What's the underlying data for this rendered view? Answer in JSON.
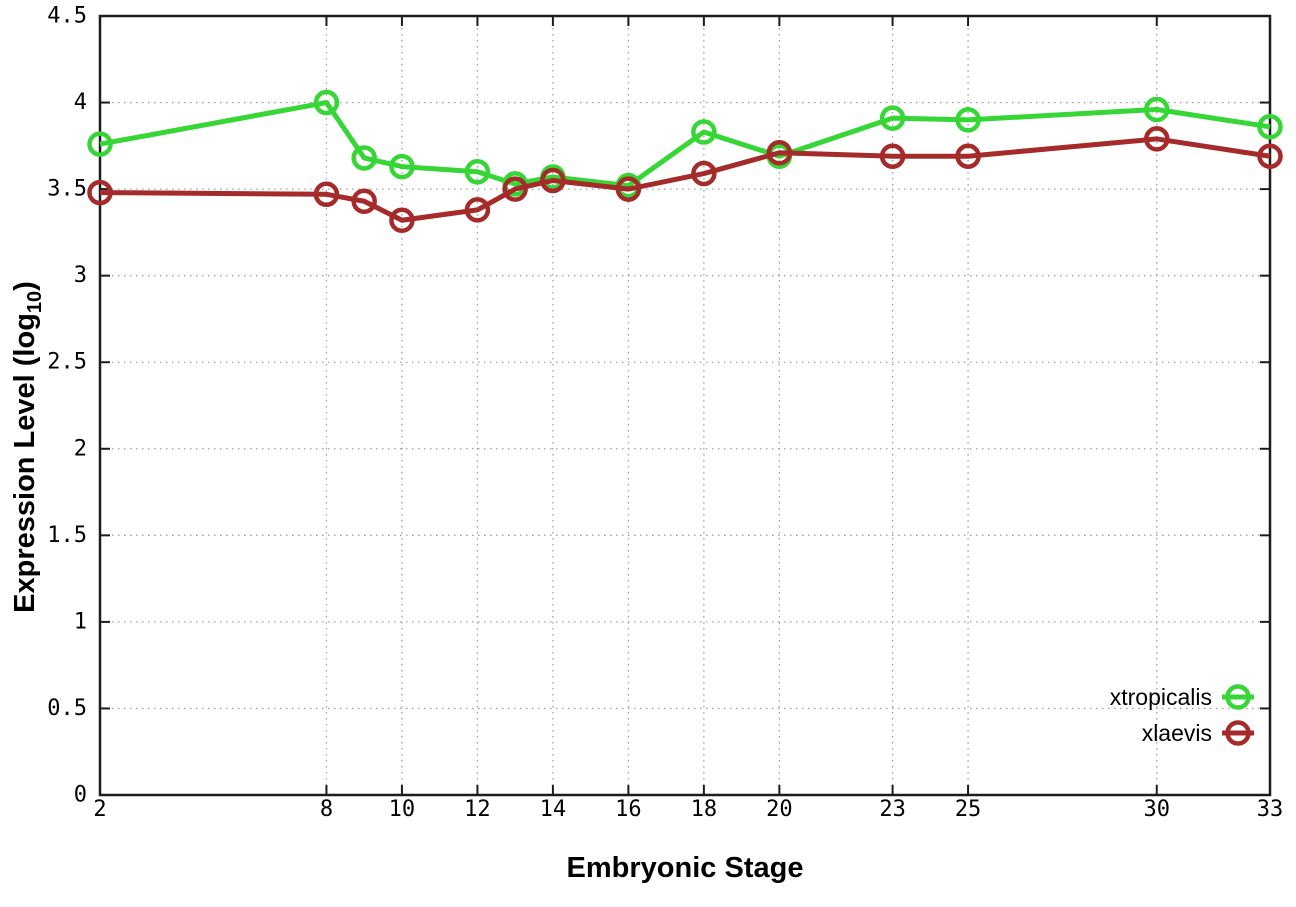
{
  "figure": {
    "background": "#ffffff",
    "border_color": "#1c1c1c",
    "grid_color": "#a0a0a0",
    "tick_color": "#1c1c1c",
    "text_color": "#000000"
  },
  "chart_data": {
    "type": "line",
    "title": "",
    "xlabel": "Embryonic Stage",
    "ylabel": {
      "pre": "Expression Level (log",
      "sub": "10",
      "post": ")"
    },
    "xlim": [
      2,
      33
    ],
    "ylim": [
      0,
      4.5
    ],
    "grid": true,
    "legend_position": "inside-bottom-right",
    "x_ticks": [
      {
        "v": 2,
        "label": "2"
      },
      {
        "v": 8,
        "label": "8"
      },
      {
        "v": 10,
        "label": "10"
      },
      {
        "v": 12,
        "label": "12"
      },
      {
        "v": 14,
        "label": "14"
      },
      {
        "v": 16,
        "label": "16"
      },
      {
        "v": 18,
        "label": "18"
      },
      {
        "v": 20,
        "label": "20"
      },
      {
        "v": 23,
        "label": "23"
      },
      {
        "v": 25,
        "label": "25"
      },
      {
        "v": 30,
        "label": "30"
      },
      {
        "v": 33,
        "label": "33"
      }
    ],
    "y_ticks": [
      {
        "v": 0,
        "label": "0"
      },
      {
        "v": 0.5,
        "label": "0.5"
      },
      {
        "v": 1,
        "label": "1"
      },
      {
        "v": 1.5,
        "label": "1.5"
      },
      {
        "v": 2,
        "label": "2"
      },
      {
        "v": 2.5,
        "label": "2.5"
      },
      {
        "v": 3,
        "label": "3"
      },
      {
        "v": 3.5,
        "label": "3.5"
      },
      {
        "v": 4,
        "label": "4"
      },
      {
        "v": 4.5,
        "label": "4.5"
      }
    ],
    "series": [
      {
        "name": "xtropicalis",
        "color": "#35d635",
        "x": [
          2,
          8,
          9,
          10,
          12,
          13,
          14,
          16,
          18,
          20,
          23,
          25,
          30,
          33
        ],
        "y": [
          3.76,
          4.0,
          3.68,
          3.63,
          3.6,
          3.53,
          3.57,
          3.52,
          3.83,
          3.69,
          3.91,
          3.9,
          3.96,
          3.86
        ]
      },
      {
        "name": "xlaevis",
        "color": "#a52a2a",
        "x": [
          2,
          8,
          9,
          10,
          12,
          13,
          14,
          16,
          18,
          20,
          23,
          25,
          30,
          33
        ],
        "y": [
          3.48,
          3.47,
          3.43,
          3.32,
          3.38,
          3.5,
          3.55,
          3.5,
          3.59,
          3.71,
          3.69,
          3.69,
          3.79,
          3.69
        ]
      }
    ]
  }
}
